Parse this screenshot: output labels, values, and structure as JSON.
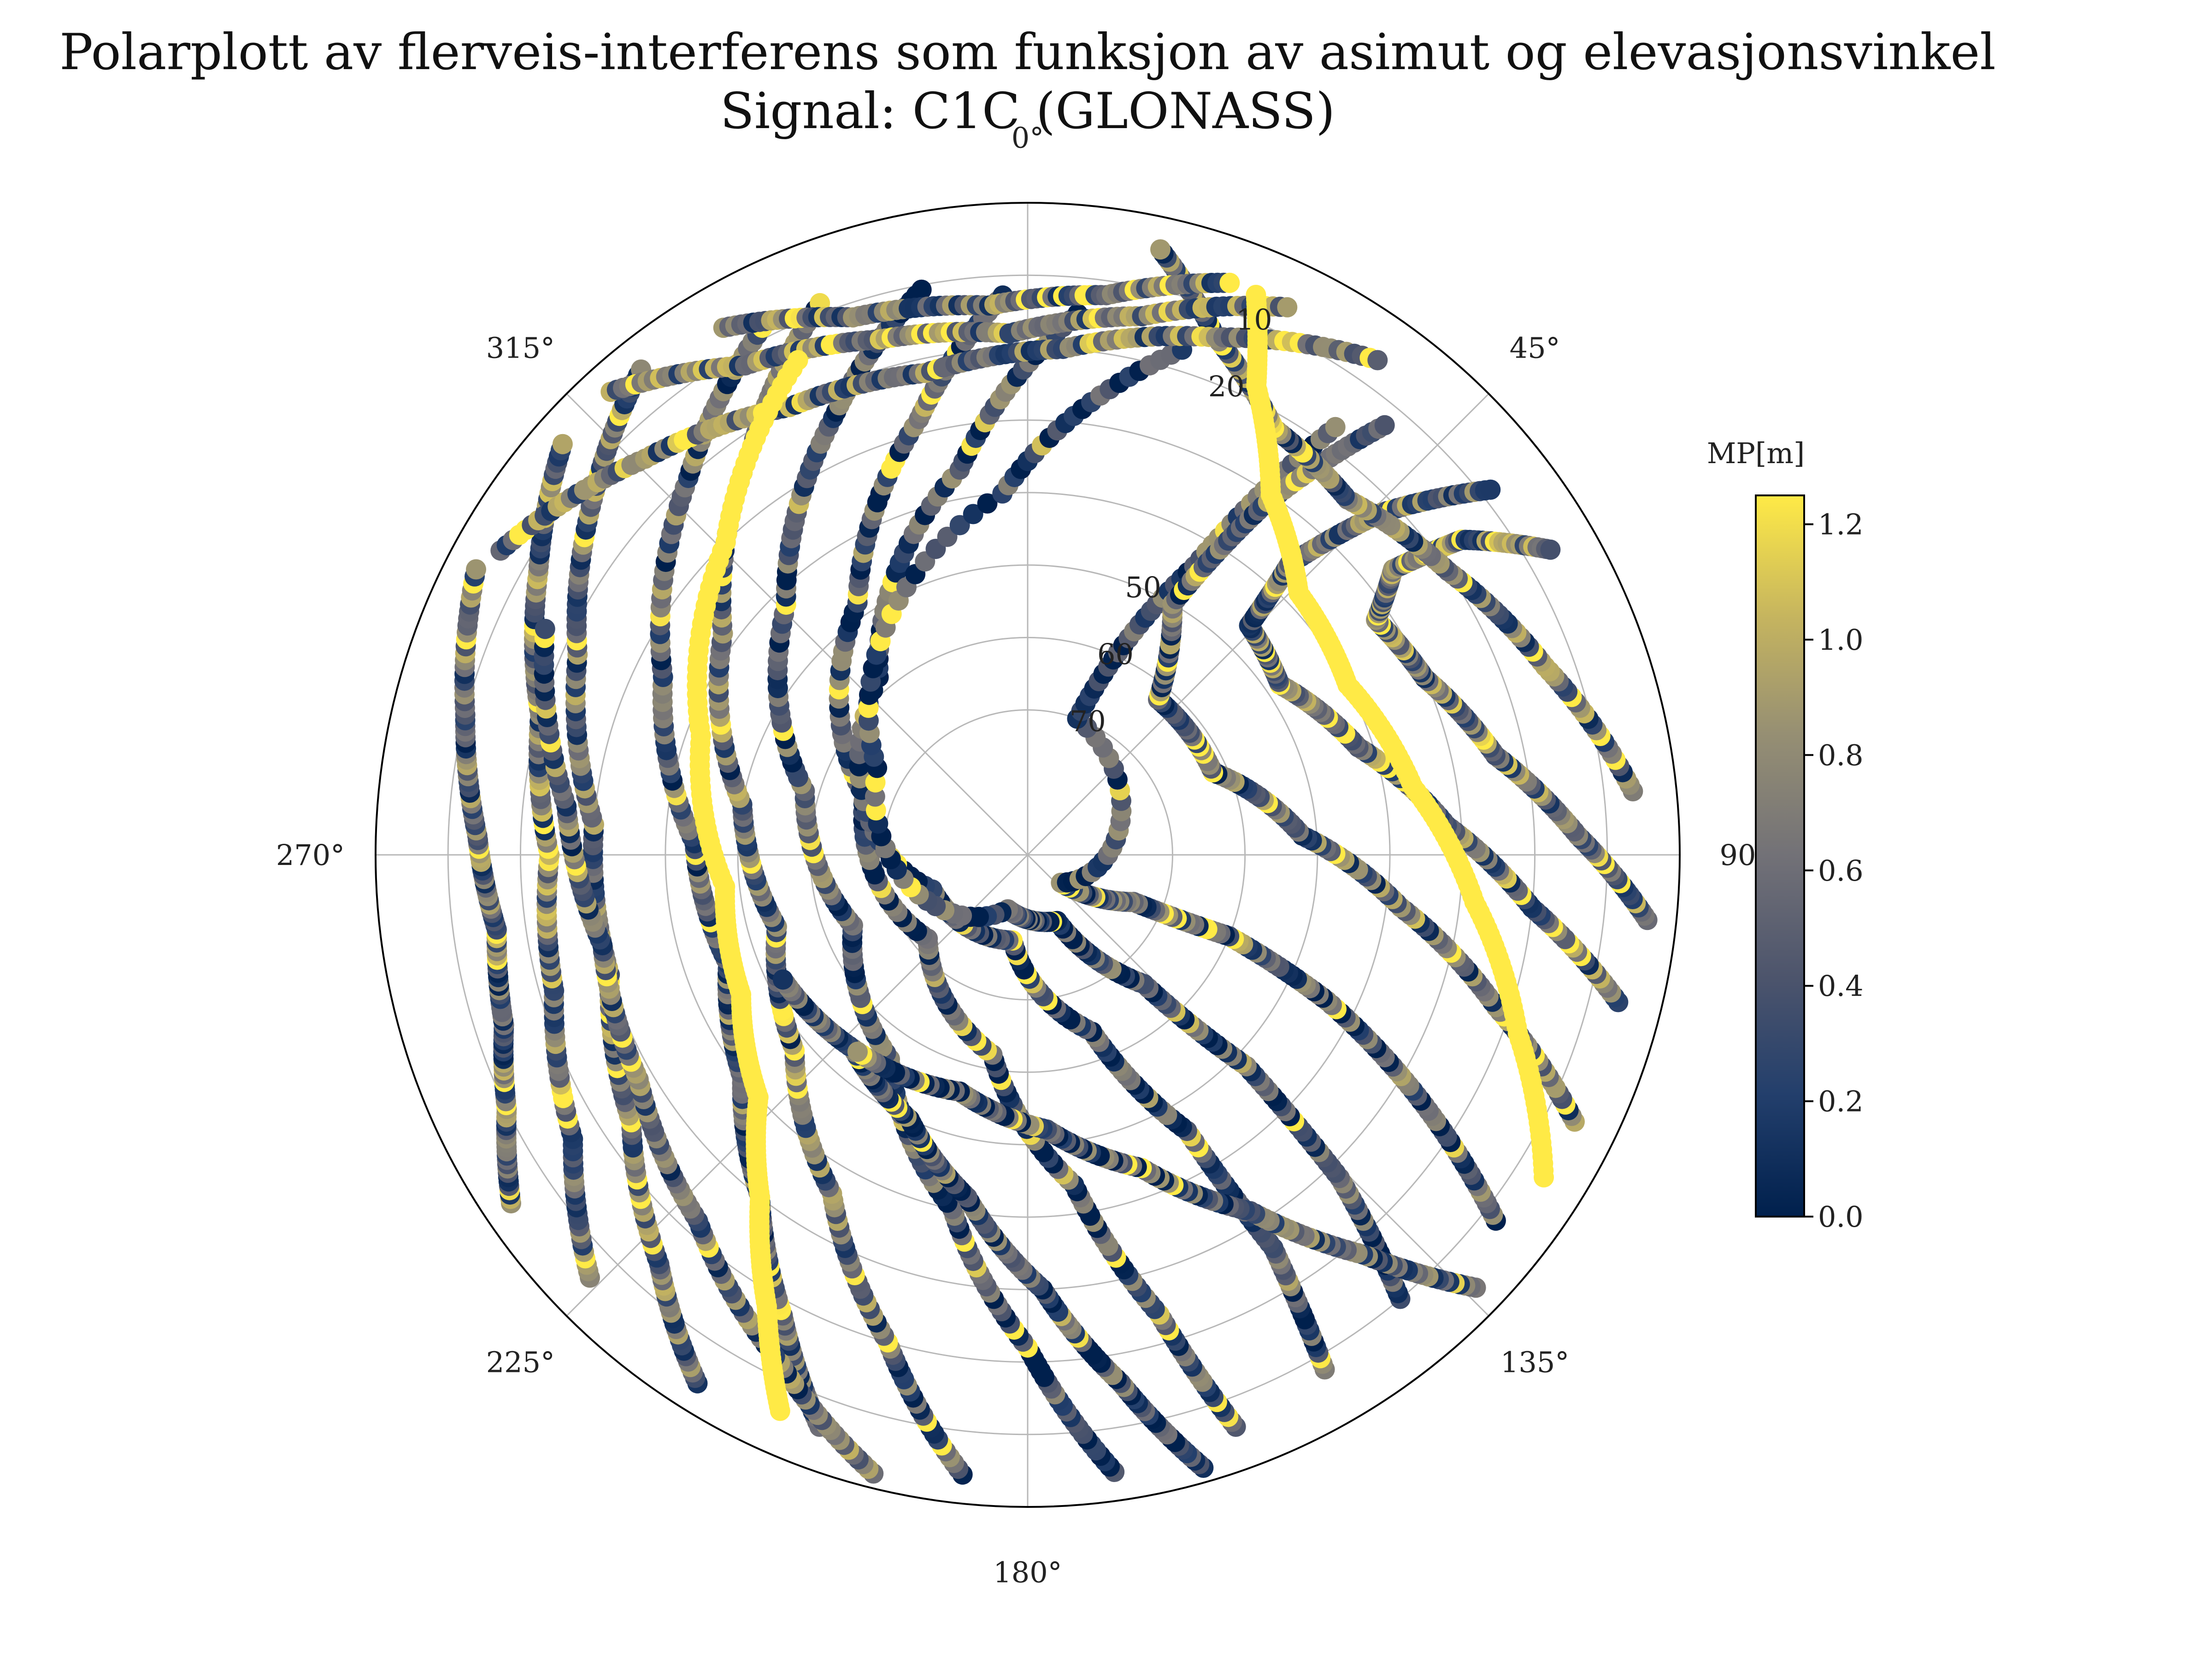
{
  "chart_data": {
    "type": "scatter",
    "projection": "polar",
    "title": "Polarplott av flerveis-interferens som funksjon av asimut og elevasjonsvinkel",
    "subtitle": "Signal: C1C (GLONASS)",
    "theta_direction": "clockwise",
    "theta_zero": "north",
    "theta_ticks": [
      "0°",
      "45°",
      "90°",
      "135°",
      "180°",
      "225°",
      "270°",
      "315°"
    ],
    "theta_tick_values": [
      0,
      45,
      90,
      135,
      180,
      225,
      270,
      315
    ],
    "r_axis": "elevation_deg_inverted",
    "r_range": [
      90,
      0
    ],
    "r_ticks_values": [
      10,
      20,
      30,
      40,
      50,
      60,
      70
    ],
    "r_ticks_printed": [
      "10",
      "20",
      "50",
      "60",
      "70"
    ],
    "grid": true,
    "colorbar": {
      "label": "MP[m]",
      "colormap": "cividis",
      "range": [
        0.0,
        1.25
      ],
      "ticks": [
        "0.0",
        "0.2",
        "0.4",
        "0.6",
        "0.8",
        "1.0",
        "1.2"
      ],
      "tick_values": [
        0.0,
        0.2,
        0.4,
        0.6,
        0.8,
        1.0,
        1.2
      ],
      "placement": "right"
    },
    "series": [
      {
        "azimuth": [
          200,
          208,
          218,
          232,
          250,
          272,
          296,
          318,
          334
        ],
        "elevation": [
          6,
          18,
          30,
          40,
          46,
          44,
          34,
          20,
          8
        ],
        "mp_level": 0.45
      },
      {
        "azimuth": [
          186,
          196,
          210,
          230,
          254,
          280,
          306,
          326,
          340
        ],
        "elevation": [
          4,
          20,
          36,
          48,
          54,
          50,
          38,
          22,
          8
        ],
        "mp_level": 0.5
      },
      {
        "azimuth": [
          172,
          180,
          192,
          214,
          248,
          286,
          316,
          336,
          350
        ],
        "elevation": [
          4,
          22,
          40,
          56,
          64,
          58,
          42,
          24,
          10
        ],
        "mp_level": 0.4
      },
      {
        "azimuth": [
          160,
          164,
          172,
          190,
          230,
          290,
          326,
          346,
          358
        ],
        "elevation": [
          6,
          24,
          44,
          62,
          72,
          66,
          48,
          28,
          12
        ],
        "mp_level": 0.35
      },
      {
        "azimuth": [
          150,
          148,
          150,
          160,
          190,
          250,
          320,
          350,
          6
        ],
        "elevation": [
          8,
          26,
          46,
          64,
          78,
          76,
          58,
          36,
          14
        ],
        "mp_level": 0.3
      },
      {
        "azimuth": [
          140,
          136,
          134,
          138,
          156,
          200,
          300,
          356,
          18
        ],
        "elevation": [
          10,
          28,
          48,
          66,
          80,
          82,
          66,
          40,
          16
        ],
        "mp_level": 0.35
      },
      {
        "azimuth": [
          128,
          122,
          116,
          112,
          114,
          130,
          20,
          30,
          36
        ],
        "elevation": [
          8,
          26,
          44,
          60,
          74,
          84,
          70,
          44,
          16
        ],
        "mp_level": 0.4
      },
      {
        "azimuth": [
          116,
          108,
          98,
          86,
          66,
          40,
          30,
          34,
          40
        ],
        "elevation": [
          6,
          22,
          38,
          52,
          62,
          62,
          50,
          32,
          12
        ],
        "mp_level": 0.5
      },
      {
        "azimuth": [
          104,
          96,
          86,
          72,
          56,
          44,
          42,
          46,
          52
        ],
        "elevation": [
          6,
          20,
          32,
          42,
          48,
          46,
          36,
          22,
          8
        ],
        "mp_level": 0.55
      },
      {
        "azimuth": [
          96,
          88,
          78,
          66,
          56,
          52,
          54,
          60
        ],
        "elevation": [
          4,
          14,
          24,
          30,
          32,
          26,
          16,
          6
        ],
        "mp_level": 0.6
      },
      {
        "azimuth": [
          212,
          222,
          236,
          254,
          274,
          294,
          310,
          322
        ],
        "elevation": [
          4,
          14,
          24,
          30,
          30,
          22,
          12,
          4
        ],
        "mp_level": 0.55
      },
      {
        "azimuth": [
          226,
          238,
          254,
          270,
          286,
          300,
          312
        ],
        "elevation": [
          6,
          16,
          22,
          24,
          20,
          12,
          4
        ],
        "mp_level": 0.6
      },
      {
        "azimuth": [
          84,
          70,
          56,
          42,
          30,
          20,
          12
        ],
        "elevation": [
          6,
          14,
          20,
          24,
          22,
          14,
          4
        ],
        "mp_level": 0.55
      },
      {
        "azimuth": [
          236,
          244,
          252,
          262,
          272,
          284,
          298
        ],
        "elevation": [
          4,
          10,
          14,
          16,
          14,
          10,
          4
        ],
        "mp_level": 0.5
      },
      {
        "azimuth": [
          300,
          316,
          332,
          348,
          4,
          20,
          36
        ],
        "elevation": [
          6,
          14,
          20,
          22,
          20,
          14,
          6
        ],
        "mp_level": 0.6
      },
      {
        "azimuth": [
          318,
          330,
          344,
          358,
          12,
          26
        ],
        "elevation": [
          4,
          12,
          16,
          18,
          14,
          6
        ],
        "mp_level": 0.65
      },
      {
        "azimuth": [
          330,
          342,
          356,
          8,
          20
        ],
        "elevation": [
          6,
          12,
          14,
          12,
          6
        ],
        "mp_level": 0.6
      },
      {
        "azimuth": [
          194,
          206,
          222,
          240,
          258,
          276,
          296
        ],
        "elevation": [
          2,
          12,
          22,
          28,
          30,
          26,
          16
        ],
        "mp_level": 0.5
      },
      {
        "azimuth": [
          164,
          170,
          178,
          190,
          204,
          222,
          244
        ],
        "elevation": [
          2,
          16,
          30,
          42,
          50,
          54,
          52
        ],
        "mp_level": 0.35
      },
      {
        "azimuth": [
          134,
          140,
          148,
          160,
          176,
          196,
          222
        ],
        "elevation": [
          4,
          18,
          32,
          44,
          52,
          56,
          54
        ],
        "mp_level": 0.4
      },
      {
        "azimuth": [
          204,
          210,
          218,
          228,
          244,
          264,
          290,
          316,
          336
        ],
        "elevation": [
          6,
          18,
          30,
          40,
          46,
          48,
          42,
          30,
          14
        ],
        "mp_level": 1.25
      },
      {
        "azimuth": [
          122,
          110,
          96,
          80,
          62,
          46,
          34,
          26,
          22
        ],
        "elevation": [
          6,
          18,
          28,
          36,
          40,
          38,
          30,
          18,
          6
        ],
        "mp_level": 1.25
      }
    ]
  }
}
